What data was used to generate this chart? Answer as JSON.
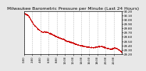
{
  "title": "Milwaukee Barometric Pressure per Minute (Last 24 Hours)",
  "title_fontsize": 4.5,
  "bg_color": "#e8e8e8",
  "plot_bg_color": "#ffffff",
  "line_color": "#cc0000",
  "marker": ".",
  "markersize": 1.0,
  "y_label_fontsize": 3.2,
  "x_label_fontsize": 2.8,
  "ylim": [
    29.2,
    30.2
  ],
  "yticks": [
    29.2,
    29.3,
    29.4,
    29.5,
    29.6,
    29.7,
    29.8,
    29.9,
    30.0,
    30.1,
    30.2
  ],
  "grid_color": "#b0b0b0",
  "grid_style": "--",
  "num_points": 1440,
  "pressure_keypoints": [
    [
      0,
      30.15
    ],
    [
      0.04,
      30.1
    ],
    [
      0.07,
      29.98
    ],
    [
      0.1,
      29.88
    ],
    [
      0.14,
      29.78
    ],
    [
      0.18,
      29.72
    ],
    [
      0.22,
      29.72
    ],
    [
      0.27,
      29.68
    ],
    [
      0.32,
      29.62
    ],
    [
      0.36,
      29.58
    ],
    [
      0.4,
      29.55
    ],
    [
      0.44,
      29.5
    ],
    [
      0.48,
      29.48
    ],
    [
      0.52,
      29.44
    ],
    [
      0.55,
      29.42
    ],
    [
      0.58,
      29.4
    ],
    [
      0.62,
      29.38
    ],
    [
      0.65,
      29.37
    ],
    [
      0.68,
      29.36
    ],
    [
      0.72,
      29.36
    ],
    [
      0.75,
      29.38
    ],
    [
      0.78,
      29.38
    ],
    [
      0.8,
      29.38
    ],
    [
      0.83,
      29.35
    ],
    [
      0.86,
      29.33
    ],
    [
      0.88,
      29.32
    ],
    [
      0.9,
      29.33
    ],
    [
      0.92,
      29.35
    ],
    [
      0.94,
      29.34
    ],
    [
      0.96,
      29.32
    ],
    [
      0.98,
      29.28
    ],
    [
      1.0,
      29.24
    ]
  ]
}
